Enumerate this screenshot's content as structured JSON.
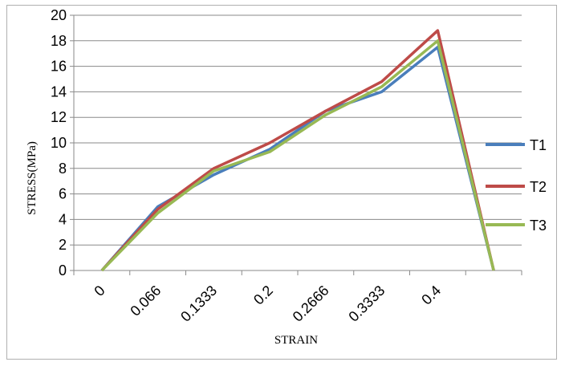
{
  "chart_data": {
    "type": "line",
    "title": "",
    "xlabel": "STRAIN",
    "ylabel": "STRESS(MPa)",
    "categories": [
      "0",
      "0.066",
      "0.1333",
      "0.2",
      "0.2666",
      "0.3333",
      "0.4",
      ""
    ],
    "ylim": [
      0,
      20
    ],
    "yticks": [
      0,
      2,
      4,
      6,
      8,
      10,
      12,
      14,
      16,
      18,
      20
    ],
    "grid": "horizontal",
    "legend_position": "right",
    "series": [
      {
        "name": "T1",
        "color": "#4a7ebb",
        "values": [
          0,
          5.0,
          7.5,
          9.5,
          12.5,
          14.0,
          17.5,
          0
        ]
      },
      {
        "name": "T2",
        "color": "#be4b48",
        "values": [
          0,
          4.8,
          8.0,
          10.0,
          12.5,
          14.8,
          18.8,
          0
        ]
      },
      {
        "name": "T3",
        "color": "#98b954",
        "values": [
          0,
          4.5,
          7.8,
          9.3,
          12.2,
          14.4,
          18.0,
          0
        ]
      }
    ]
  }
}
